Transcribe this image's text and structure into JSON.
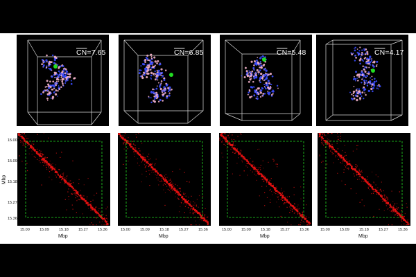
{
  "panels": [
    {
      "cn_label": "CN",
      "cn_value": "=7.65"
    },
    {
      "cn_label": "CN",
      "cn_value": "=6.85"
    },
    {
      "cn_label": "CN",
      "cn_value": "=5.48"
    },
    {
      "cn_label": "CN",
      "cn_value": "=4.17"
    }
  ],
  "heatmap": {
    "x_ticks": [
      "15.00",
      "15.09",
      "15.18",
      "15.27",
      "15.36"
    ],
    "y_ticks": [
      "15.00",
      "15.09",
      "15.18",
      "15.27",
      "15.36"
    ],
    "xlabel": "Mbp",
    "ylabel": "Mbp"
  },
  "colors": {
    "box": "#dddddd",
    "contact": "#e01010",
    "green": "#22dd22",
    "blue": "#3a4cff",
    "pink": "#f0b0c8"
  }
}
